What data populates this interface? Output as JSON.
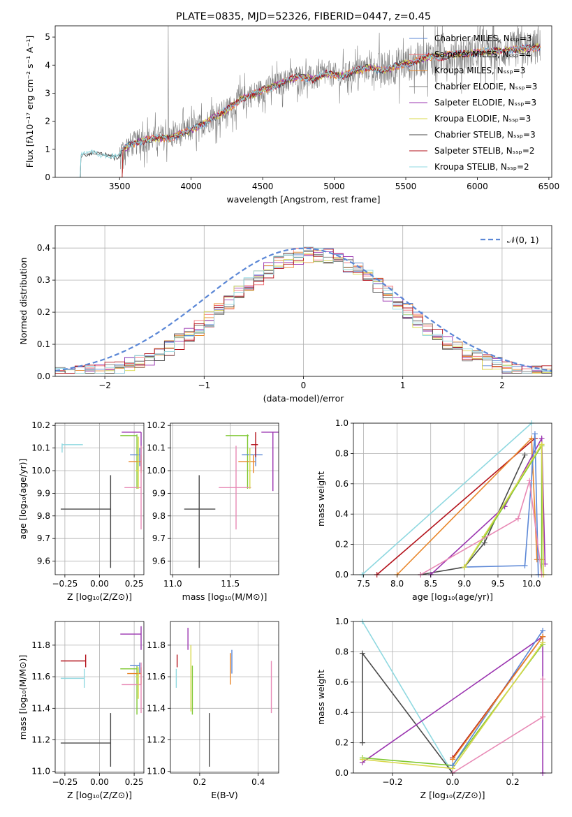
{
  "colors": {
    "chab_miles": "#5b87d6",
    "salp_miles": "#f06c72",
    "krou_miles": "#e8862a",
    "chab_elodie": "#7f7f7f",
    "salp_elodie": "#9b35b0",
    "krou_elodie": "#d8d84a",
    "chab_stelib": "#4a4a4a",
    "salp_stelib": "#b3121b",
    "krou_stelib": "#8fd8e0",
    "kroupa_green": "#7fc832",
    "pink": "#e889b5",
    "normal": "#5b87d6",
    "grid": "#b0b0b0"
  },
  "chart_data": [
    {
      "id": "spectrum",
      "type": "line",
      "title": "PLATE=0835, MJD=52326, FIBERID=0447, z=0.45",
      "xlabel": "wavelength [Angstrom, rest frame]",
      "ylabel": "Flux [fλ10⁻¹⁷ erg cm⁻² s⁻¹ A⁻¹]",
      "xlim": [
        3050,
        6520
      ],
      "ylim": [
        0,
        5.4
      ],
      "xticks": [
        "3500",
        "4000",
        "4500",
        "5000",
        "5500",
        "6000",
        "6500"
      ],
      "yticks": [
        "0",
        "1",
        "2",
        "3",
        "4",
        "5"
      ],
      "grid": false,
      "legend_position": "top-right",
      "legend": [
        "Chabrier MILES, Nₛₛₚ=3",
        "Salpeter MILES, Nₛₛₚ=4",
        "Kroupa MILES, Nₛₛₚ=3",
        "Chabrier ELODIE, Nₛₛₚ=3",
        "Salpeter ELODIE, Nₛₛₚ=3",
        "Kroupa ELODIE, Nₛₛₚ=3",
        "Chabrier STELIB, Nₛₛₚ=3",
        "Salpeter STELIB, Nₛₛₚ=2",
        "Kroupa STELIB, Nₛₛₚ=2"
      ],
      "continuum": {
        "x": [
          3200,
          3230,
          3300,
          3400,
          3480,
          3550,
          3650,
          3750,
          3850,
          3950,
          4050,
          4150,
          4250,
          4350,
          4450,
          4550,
          4650,
          4750,
          4850,
          4950,
          5050,
          5150,
          5250,
          5350,
          5450,
          5550,
          5650,
          5750,
          5850,
          5950,
          6050,
          6150,
          6250,
          6350,
          6440
        ],
        "y": [
          0,
          0.8,
          0.85,
          0.8,
          0.75,
          1.1,
          1.3,
          1.4,
          1.4,
          1.6,
          1.8,
          2.1,
          2.4,
          2.8,
          3.0,
          3.2,
          3.4,
          3.6,
          3.5,
          3.7,
          3.6,
          3.8,
          3.9,
          3.8,
          4.0,
          4.1,
          4.3,
          4.3,
          4.4,
          4.4,
          4.5,
          4.5,
          4.55,
          4.6,
          4.65
        ]
      }
    },
    {
      "id": "residuals",
      "type": "line",
      "xlabel": "(data-model)/error",
      "ylabel": "Normed distribution",
      "xlim": [
        -2.5,
        2.5
      ],
      "ylim": [
        0,
        0.47
      ],
      "xticks": [
        "−2",
        "−1",
        "0",
        "1",
        "2"
      ],
      "yticks": [
        "0.0",
        "0.1",
        "0.2",
        "0.3",
        "0.4"
      ],
      "grid": true,
      "legend_position": "top-right",
      "legend": [
        "𝒩(0, 1)"
      ],
      "reference_curve": "standard normal density"
    },
    {
      "id": "age_vs_Z",
      "type": "scatter",
      "xlabel": "Z [log₁₀(Z/Z⊙)]",
      "ylabel": "age  [log₁₀(age/yr)]",
      "xlim": [
        -0.32,
        0.32
      ],
      "ylim": [
        9.54,
        10.21
      ],
      "xticks": [
        "−0.25",
        "0.00",
        "0.25"
      ],
      "yticks": [
        "9.6",
        "9.7",
        "9.8",
        "9.9",
        "10.0",
        "10.1",
        "10.2"
      ],
      "grid": true,
      "points": [
        {
          "c": "chab_stelib",
          "x": 0.08,
          "xl": -0.28,
          "y": 9.83,
          "yl": 9.57,
          "yh": 9.98
        },
        {
          "c": "krou_stelib",
          "x": -0.27,
          "xl": -0.12,
          "y": 10.115,
          "yl": 10.08,
          "yh": 10.12
        },
        {
          "c": "salp_elodie",
          "x": 0.3,
          "xl": 0.16,
          "y": 10.17,
          "yl": 10.0,
          "yh": 10.17
        },
        {
          "c": "kroupa_green",
          "x": 0.27,
          "xl": 0.15,
          "y": 10.155,
          "yl": 9.92,
          "yh": 10.16
        },
        {
          "c": "chab_miles",
          "x": 0.29,
          "xl": 0.22,
          "y": 10.07,
          "yl": 10.02,
          "yh": 10.1
        },
        {
          "c": "krou_miles",
          "x": 0.3,
          "xl": 0.21,
          "y": 10.04,
          "yl": 9.99,
          "yh": 10.07
        },
        {
          "c": "pink",
          "x": 0.3,
          "xl": 0.18,
          "y": 9.925,
          "yl": 9.74,
          "yh": 10.11
        },
        {
          "c": "krou_elodie",
          "x": 0.28,
          "xl": 0.26,
          "y": 10.0,
          "yl": 9.92,
          "yh": 10.15
        }
      ]
    },
    {
      "id": "age_vs_mass",
      "type": "scatter",
      "xlabel": "mass [log₁₀(M/M⊙)]",
      "ylabel": "",
      "xlim": [
        10.98,
        11.92
      ],
      "ylim": [
        9.54,
        10.21
      ],
      "xticks": [
        "11.0",
        "11.5"
      ],
      "yticks": [
        "9.6",
        "9.7",
        "9.8",
        "9.9",
        "10.0",
        "10.1",
        "10.2"
      ],
      "grid": true,
      "points": [
        {
          "c": "chab_stelib",
          "x": 11.23,
          "xl": 11.1,
          "xh": 11.37,
          "y": 9.83,
          "yl": 9.57,
          "yh": 9.98
        },
        {
          "c": "salp_elodie",
          "x": 11.87,
          "xl": 11.77,
          "xh": 11.92,
          "y": 10.17,
          "yl": 9.91,
          "yh": 10.17
        },
        {
          "c": "kroupa_green",
          "x": 11.65,
          "xl": 11.46,
          "xh": 11.66,
          "y": 10.155,
          "yl": 9.92,
          "yh": 10.16
        },
        {
          "c": "chab_miles",
          "x": 11.72,
          "xl": 11.6,
          "xh": 11.78,
          "y": 10.07,
          "yl": 10.02,
          "yh": 10.1
        },
        {
          "c": "krou_miles",
          "x": 11.7,
          "xl": 11.57,
          "xh": 11.72,
          "y": 10.04,
          "yl": 9.99,
          "yh": 10.07
        },
        {
          "c": "pink",
          "x": 11.55,
          "xl": 11.4,
          "xh": 11.68,
          "y": 9.925,
          "yl": 9.74,
          "yh": 10.11
        },
        {
          "c": "salp_stelib",
          "x": 11.72,
          "xl": 11.68,
          "xh": 11.74,
          "y": 10.115,
          "yl": 10.06,
          "yh": 10.17
        },
        {
          "c": "krou_elodie",
          "x": 11.67,
          "xl": 11.66,
          "xh": 11.68,
          "y": 10.0,
          "yl": 9.92,
          "yh": 10.1
        }
      ]
    },
    {
      "id": "massweight_vs_age",
      "type": "line",
      "xlabel": "age  [log₁₀(age/yr)]",
      "ylabel": "mass weight",
      "xlim": [
        7.35,
        10.3
      ],
      "ylim": [
        0,
        1.0
      ],
      "xticks": [
        "7.5",
        "8.0",
        "8.5",
        "9.0",
        "9.5",
        "10.0"
      ],
      "yticks": [
        "0.0",
        "0.2",
        "0.4",
        "0.6",
        "0.8",
        "1.0"
      ],
      "grid": true,
      "series": [
        {
          "c": "krou_stelib",
          "x": [
            7.48,
            10.0
          ],
          "y": [
            0.0,
            1.0
          ]
        },
        {
          "c": "salp_stelib",
          "x": [
            7.7,
            10.05
          ],
          "y": [
            0.0,
            0.9
          ]
        },
        {
          "c": "krou_miles",
          "x": [
            8.0,
            10.0,
            10.08,
            10.15
          ],
          "y": [
            0.0,
            0.9,
            0.1,
            0.1
          ]
        },
        {
          "c": "chab_stelib",
          "x": [
            8.35,
            9.0,
            9.3,
            9.9
          ],
          "y": [
            0.0,
            0.05,
            0.21,
            0.79
          ]
        },
        {
          "c": "salp_elodie",
          "x": [
            8.5,
            9.6,
            10.15,
            10.2
          ],
          "y": [
            0.0,
            0.45,
            0.9,
            0.07
          ]
        },
        {
          "c": "chab_miles",
          "x": [
            9.0,
            9.9,
            10.05,
            10.1
          ],
          "y": [
            0.05,
            0.06,
            0.93,
            0.0
          ]
        },
        {
          "c": "kroupa_green",
          "x": [
            9.0,
            9.3,
            10.15,
            10.15
          ],
          "y": [
            0.05,
            0.25,
            0.85,
            0.0
          ]
        },
        {
          "c": "krou_elodie",
          "x": [
            9.0,
            10.15,
            10.18
          ],
          "y": [
            0.05,
            0.86,
            0.0
          ]
        },
        {
          "c": "pink",
          "x": [
            8.35,
            9.8,
            9.97,
            10.15
          ],
          "y": [
            0.0,
            0.37,
            0.62,
            0.0
          ]
        }
      ]
    },
    {
      "id": "mass_vs_Z",
      "type": "scatter",
      "xlabel": "Z [log₁₀(Z/Z⊙)]",
      "ylabel": "mass [log₁₀(M/M⊙)]",
      "xlim": [
        -0.32,
        0.32
      ],
      "ylim": [
        10.99,
        11.95
      ],
      "xticks": [
        "−0.25",
        "0.00",
        "0.25"
      ],
      "yticks": [
        "11.0",
        "11.2",
        "11.4",
        "11.6",
        "11.8"
      ],
      "grid": true,
      "points": [
        {
          "c": "chab_stelib",
          "x": 0.08,
          "xl": -0.28,
          "y": 11.18,
          "yl": 11.03,
          "yh": 11.37
        },
        {
          "c": "salp_stelib",
          "x": -0.1,
          "xl": -0.28,
          "y": 11.7,
          "yl": 11.66,
          "yh": 11.74
        },
        {
          "c": "krou_stelib",
          "x": -0.11,
          "xl": -0.28,
          "y": 11.59,
          "yl": 11.53,
          "yh": 11.65
        },
        {
          "c": "salp_elodie",
          "x": 0.3,
          "xl": 0.15,
          "y": 11.87,
          "yl": 11.77,
          "yh": 11.92
        },
        {
          "c": "kroupa_green",
          "x": 0.27,
          "xl": 0.15,
          "y": 11.65,
          "yl": 11.36,
          "yh": 11.67
        },
        {
          "c": "chab_miles",
          "x": 0.29,
          "xl": 0.22,
          "y": 11.67,
          "yl": 11.62,
          "yh": 11.69
        },
        {
          "c": "krou_miles",
          "x": 0.3,
          "xl": 0.2,
          "y": 11.62,
          "yl": 11.55,
          "yh": 11.66
        },
        {
          "c": "pink",
          "x": 0.3,
          "xl": 0.16,
          "y": 11.55,
          "yl": 11.37,
          "yh": 11.69
        },
        {
          "c": "krou_elodie",
          "x": 0.28,
          "xl": 0.26,
          "y": 11.6,
          "yl": 11.46,
          "yh": 11.66
        }
      ]
    },
    {
      "id": "mass_vs_ebv",
      "type": "scatter",
      "xlabel": "E(B-V)",
      "ylabel": "",
      "xlim": [
        0.1,
        0.47
      ],
      "ylim": [
        10.99,
        11.95
      ],
      "xticks": [
        "0.2",
        "0.4"
      ],
      "yticks": [
        "11.0",
        "11.2",
        "11.4",
        "11.6",
        "11.8"
      ],
      "grid": true,
      "points": [
        {
          "c": "chab_stelib",
          "x": 0.233,
          "y": 11.18,
          "yl": 11.03,
          "yh": 11.37
        },
        {
          "c": "salp_stelib",
          "x": 0.123,
          "y": 11.7,
          "yl": 11.66,
          "yh": 11.74
        },
        {
          "c": "krou_stelib",
          "x": 0.12,
          "y": 11.59,
          "yl": 11.53,
          "yh": 11.65
        },
        {
          "c": "salp_elodie",
          "x": 0.16,
          "y": 11.87,
          "yl": 11.77,
          "yh": 11.91
        },
        {
          "c": "kroupa_green",
          "x": 0.175,
          "y": 11.65,
          "yl": 11.36,
          "yh": 11.67
        },
        {
          "c": "krou_elodie",
          "x": 0.17,
          "y": 11.62,
          "yl": 11.38,
          "yh": 11.8
        },
        {
          "c": "chab_miles",
          "x": 0.31,
          "y": 11.67,
          "yl": 11.62,
          "yh": 11.77
        },
        {
          "c": "krou_miles",
          "x": 0.305,
          "y": 11.62,
          "yl": 11.55,
          "yh": 11.75
        },
        {
          "c": "pink",
          "x": 0.445,
          "y": 11.55,
          "yl": 11.37,
          "yh": 11.7
        }
      ]
    },
    {
      "id": "massweight_vs_Z",
      "type": "line",
      "xlabel": "Z [log₁₀(Z/Z⊙)]",
      "ylabel": "mass weight",
      "xlim": [
        -0.33,
        0.33
      ],
      "ylim": [
        0,
        1.0
      ],
      "xticks": [
        "−0.2",
        "0.0",
        "0.2"
      ],
      "yticks": [
        "0.0",
        "0.2",
        "0.4",
        "0.6",
        "0.8",
        "1.0"
      ],
      "grid": true,
      "series": [
        {
          "c": "krou_stelib",
          "x": [
            -0.3,
            0.0
          ],
          "y": [
            1.0,
            0.0
          ]
        },
        {
          "c": "chab_stelib",
          "x": [
            -0.3,
            -0.3,
            0.0
          ],
          "y": [
            0.2,
            0.79,
            0.0
          ]
        },
        {
          "c": "salp_elodie",
          "x": [
            -0.3,
            0.3,
            0.3
          ],
          "y": [
            0.07,
            0.9,
            0.0
          ]
        },
        {
          "c": "kroupa_green",
          "x": [
            -0.3,
            0.0,
            0.3
          ],
          "y": [
            0.1,
            0.05,
            0.85
          ]
        },
        {
          "c": "krou_elodie",
          "x": [
            -0.3,
            0.0,
            0.3
          ],
          "y": [
            0.09,
            0.03,
            0.86
          ]
        },
        {
          "c": "chab_miles",
          "x": [
            0.0,
            0.3
          ],
          "y": [
            0.05,
            0.94
          ]
        },
        {
          "c": "salp_stelib",
          "x": [
            0.0,
            0.3
          ],
          "y": [
            0.1,
            0.9
          ]
        },
        {
          "c": "krou_miles",
          "x": [
            0.0,
            0.3
          ],
          "y": [
            0.09,
            0.9
          ]
        },
        {
          "c": "pink",
          "x": [
            0.0,
            0.3,
            0.3
          ],
          "y": [
            0.0,
            0.37,
            0.62
          ]
        }
      ]
    }
  ]
}
